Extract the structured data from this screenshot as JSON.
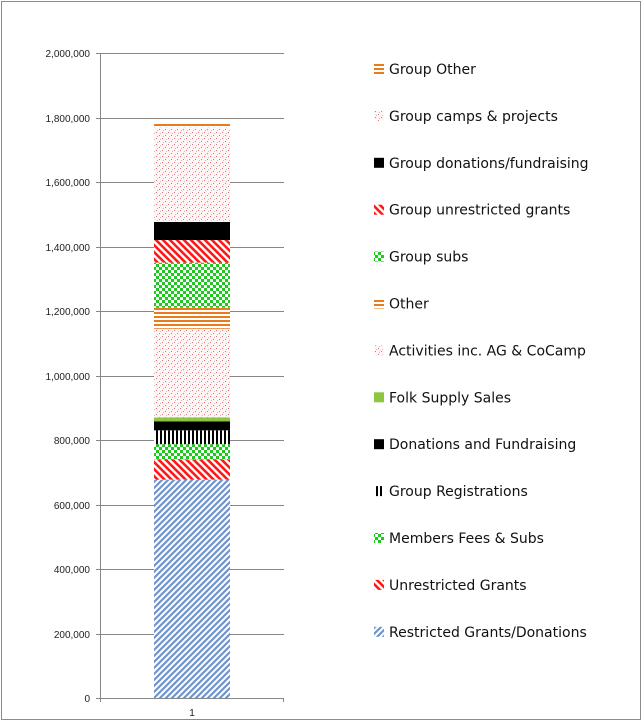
{
  "chart_data": {
    "type": "bar",
    "stacked": true,
    "title": "",
    "xlabel": "",
    "ylabel": "",
    "categories": [
      "1"
    ],
    "ylim": [
      0,
      2000000
    ],
    "yticks": [
      0,
      200000,
      400000,
      600000,
      800000,
      1000000,
      1200000,
      1400000,
      1600000,
      1800000,
      2000000
    ],
    "ytick_labels": [
      "0",
      "200,000",
      "400,000",
      "600,000",
      "800,000",
      "1,000,000",
      "1,200,000",
      "1,400,000",
      "1,600,000",
      "1,800,000",
      "2,000,000"
    ],
    "grid": true,
    "legend_position": "right",
    "series": [
      {
        "name": "Restricted Grants/Donations",
        "values": [
          677000
        ],
        "color": "#7e9fd0",
        "pattern": "diagonal-forward"
      },
      {
        "name": "Unrestricted Grants",
        "values": [
          63000
        ],
        "color": "#ff1a1a",
        "pattern": "diagonal-back"
      },
      {
        "name": "Members Fees & Subs",
        "values": [
          47000
        ],
        "color": "#1ec81e",
        "pattern": "checker"
      },
      {
        "name": "Group Registrations",
        "values": [
          43000
        ],
        "color": "#000000",
        "pattern": "vertical"
      },
      {
        "name": "Donations and Fundraising",
        "values": [
          28000
        ],
        "color": "#000000",
        "pattern": "solid"
      },
      {
        "name": "Folk Supply Sales",
        "values": [
          12000
        ],
        "color": "#8dc63f",
        "pattern": "solid"
      },
      {
        "name": "Activities inc. AG & CoCamp",
        "values": [
          275000
        ],
        "color": "#e8a0a0",
        "pattern": "dots"
      },
      {
        "name": "Other",
        "values": [
          65000
        ],
        "color": "#e87b1e",
        "pattern": "horizontal"
      },
      {
        "name": "Group subs",
        "values": [
          140000
        ],
        "color": "#1ec81e",
        "pattern": "checker"
      },
      {
        "name": "Group unrestricted grants",
        "values": [
          70000
        ],
        "color": "#ff1a1a",
        "pattern": "diagonal-back"
      },
      {
        "name": "Group donations/fundraising",
        "values": [
          56000
        ],
        "color": "#000000",
        "pattern": "solid"
      },
      {
        "name": "Group camps & projects",
        "values": [
          293000
        ],
        "color": "#e8a0a0",
        "pattern": "dots"
      },
      {
        "name": "Group Other",
        "values": [
          16000
        ],
        "color": "#e87b1e",
        "pattern": "horizontal"
      }
    ]
  }
}
